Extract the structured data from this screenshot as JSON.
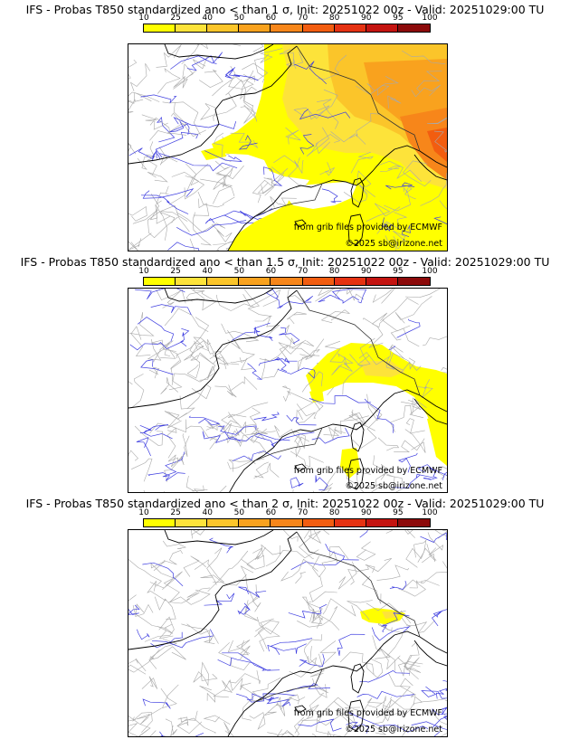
{
  "legend": {
    "ticks": [
      "10",
      "25",
      "40",
      "50",
      "60",
      "70",
      "80",
      "90",
      "95",
      "100"
    ],
    "colors": [
      "#ffff00",
      "#fde33a",
      "#fbc52a",
      "#f9a21e",
      "#f7861a",
      "#f25d10",
      "#e53212",
      "#c41410",
      "#8c0a0a",
      "#4a0000"
    ]
  },
  "panels": [
    {
      "title": "IFS - Probas T850  standardized ano < than 1 σ, Init: 20251022 00z - Valid: 20251029:00 TU",
      "credit_source": "from grib files provided by ECMWF",
      "credit_copyright": "©2025 sb@irizone.net",
      "coverage": "widespread"
    },
    {
      "title": "IFS - Probas T850  standardized ano < than 1.5 σ, Init: 20251022 00z - Valid: 20251029:00 TU",
      "credit_source": "from grib files provided by ECMWF",
      "credit_copyright": "©2025 sb@irizone.net",
      "coverage": "alps"
    },
    {
      "title": "IFS - Probas T850  standardized ano < than 2 σ, Init: 20251022 00z - Valid: 20251029:00 TU",
      "credit_source": "from grib files provided by ECMWF",
      "credit_copyright": "©2025 sb@irizone.net",
      "coverage": "small"
    }
  ]
}
